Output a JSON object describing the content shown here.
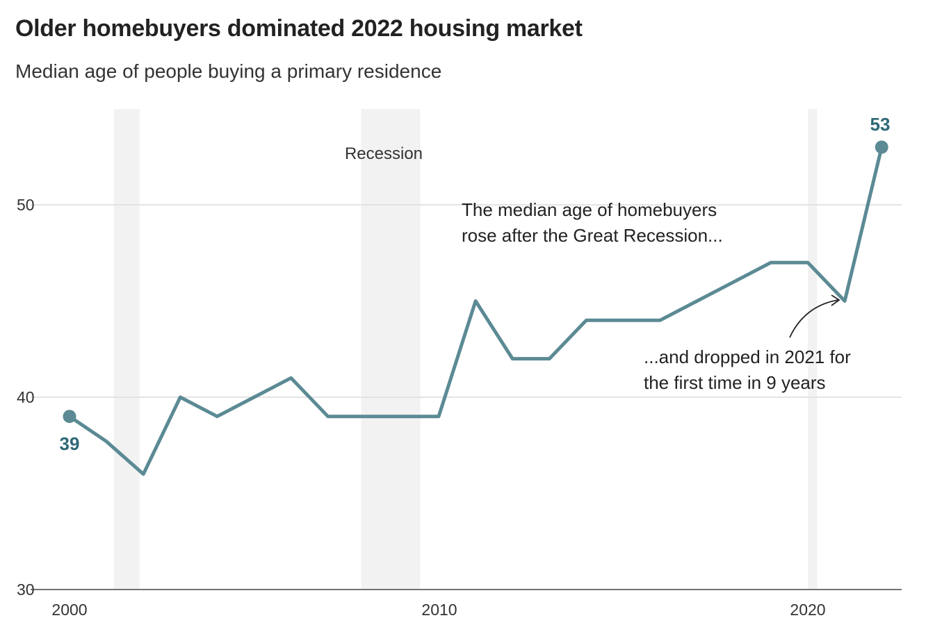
{
  "chart_data": {
    "type": "line",
    "title": "Older homebuyers dominated 2022 housing market",
    "subtitle": "Median age of people buying a primary residence",
    "x": [
      2000,
      2001,
      2002,
      2003,
      2004,
      2005,
      2006,
      2007,
      2008,
      2009,
      2010,
      2011,
      2012,
      2013,
      2014,
      2015,
      2016,
      2017,
      2018,
      2019,
      2020,
      2021,
      2022
    ],
    "series": [
      {
        "values": [
          39,
          37.7,
          36,
          40,
          39,
          40,
          41,
          39,
          39,
          39,
          39,
          45,
          42,
          42,
          44,
          44,
          44,
          45,
          46,
          47,
          47,
          45,
          53
        ]
      }
    ],
    "xlim": [
      2000,
      2022.5
    ],
    "ylim": [
      30,
      55
    ],
    "x_ticks": [
      "2000",
      "2010",
      "2020"
    ],
    "y_ticks": [
      "30",
      "40",
      "50"
    ],
    "grid": true,
    "line_color": "#5b8a94",
    "label_color": "#2e6876",
    "recessions": [
      [
        2001.2,
        2001.9
      ],
      [
        2007.9,
        2009.5
      ],
      [
        2020.0,
        2020.25
      ]
    ],
    "recession_label": "Recession",
    "annotations": {
      "rise_line1": "The median age of homebuyers",
      "rise_line2": "rose after the Great Recession...",
      "drop_line1": "...and dropped in 2021 for",
      "drop_line2": "the first time in 9 years"
    },
    "end_labels": {
      "start": "39",
      "end": "53"
    }
  }
}
